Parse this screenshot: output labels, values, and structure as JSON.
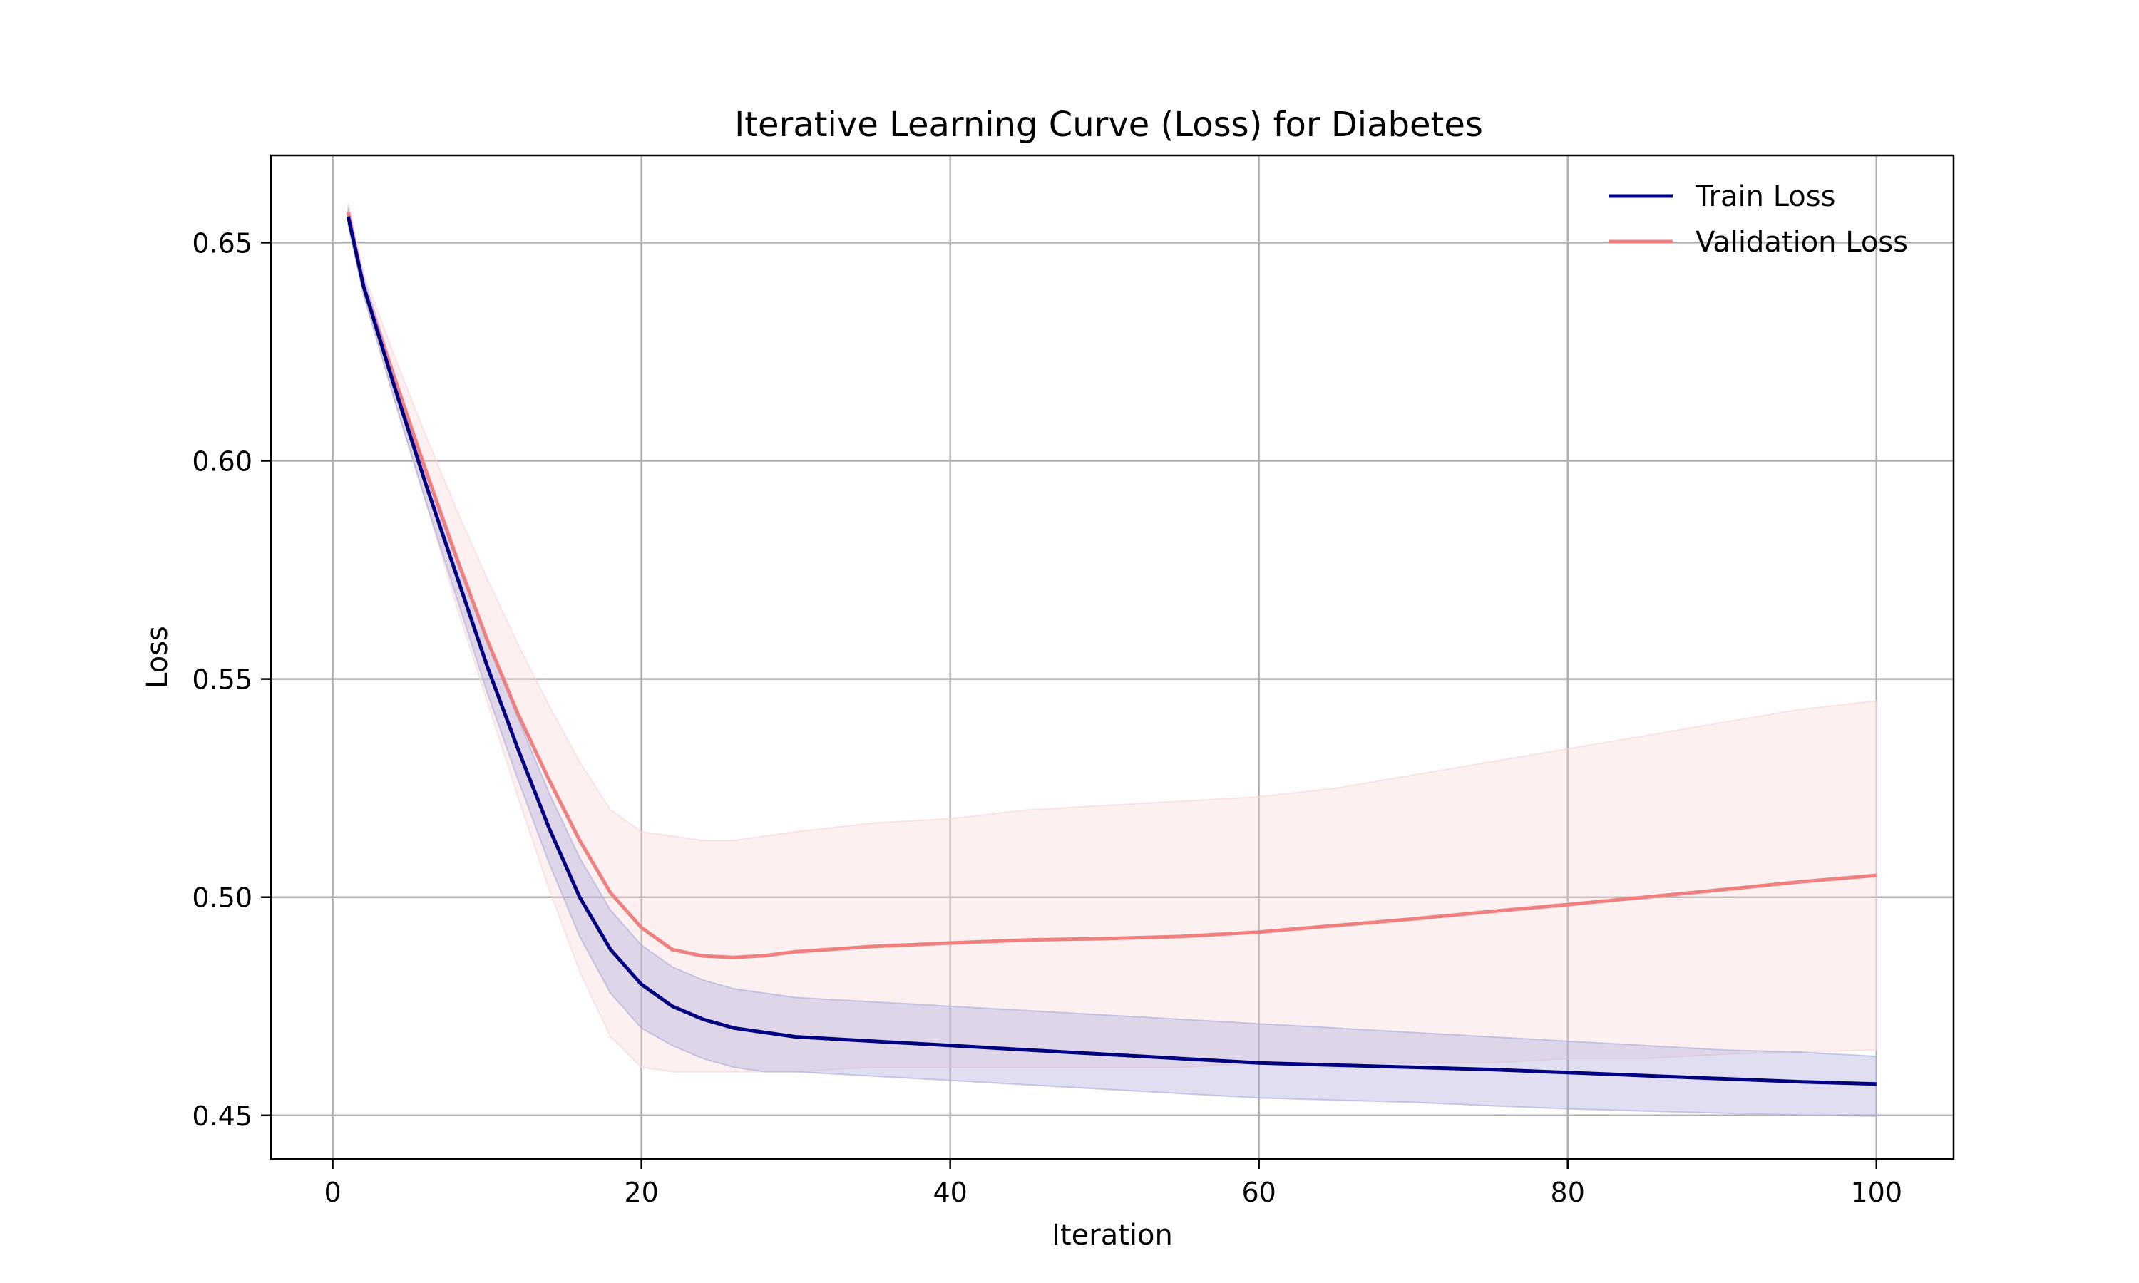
{
  "chart_data": {
    "type": "line",
    "title": "Iterative Learning Curve (Loss) for Diabetes",
    "xlabel": "Iteration",
    "ylabel": "Loss",
    "xlim": [
      -4,
      105
    ],
    "ylim": [
      0.44,
      0.67
    ],
    "grid": true,
    "legend_position": "top-right",
    "x_ticks": [
      0,
      20,
      40,
      60,
      80,
      100
    ],
    "x_tick_labels": [
      "0",
      "20",
      "40",
      "60",
      "80",
      "100"
    ],
    "y_ticks": [
      0.45,
      0.5,
      0.55,
      0.6,
      0.65
    ],
    "y_tick_labels": [
      "0.45",
      "0.50",
      "0.55",
      "0.60",
      "0.65"
    ],
    "x": [
      1,
      2,
      4,
      6,
      8,
      10,
      12,
      14,
      16,
      18,
      20,
      22,
      24,
      26,
      28,
      30,
      35,
      40,
      45,
      50,
      55,
      60,
      65,
      70,
      75,
      80,
      85,
      90,
      95,
      100
    ],
    "series": [
      {
        "name": "Train Loss",
        "color": "#000080",
        "band_color": "#aaaadb",
        "values": [
          0.656,
          0.64,
          0.617,
          0.595,
          0.574,
          0.553,
          0.534,
          0.516,
          0.5,
          0.488,
          0.48,
          0.475,
          0.472,
          0.47,
          0.469,
          0.468,
          0.467,
          0.466,
          0.465,
          0.464,
          0.463,
          0.462,
          0.4615,
          0.461,
          0.4605,
          0.4598,
          0.4591,
          0.4584,
          0.4577,
          0.4572
        ],
        "lower": [
          0.654,
          0.638,
          0.614,
          0.591,
          0.569,
          0.547,
          0.527,
          0.508,
          0.491,
          0.478,
          0.47,
          0.466,
          0.463,
          0.461,
          0.46,
          0.46,
          0.459,
          0.458,
          0.457,
          0.456,
          0.455,
          0.454,
          0.4535,
          0.453,
          0.4522,
          0.4515,
          0.451,
          0.4505,
          0.4501,
          0.4498
        ],
        "upper": [
          0.658,
          0.642,
          0.62,
          0.599,
          0.579,
          0.559,
          0.541,
          0.524,
          0.509,
          0.497,
          0.489,
          0.484,
          0.481,
          0.479,
          0.478,
          0.477,
          0.476,
          0.475,
          0.474,
          0.473,
          0.472,
          0.471,
          0.47,
          0.469,
          0.468,
          0.467,
          0.466,
          0.465,
          0.4645,
          0.4635
        ]
      },
      {
        "name": "Validation Loss",
        "color": "#f08080",
        "band_color": "#f9d5d5",
        "values": [
          0.657,
          0.64,
          0.619,
          0.598,
          0.578,
          0.559,
          0.542,
          0.527,
          0.513,
          0.501,
          0.493,
          0.488,
          0.4865,
          0.4862,
          0.4866,
          0.4875,
          0.4887,
          0.4895,
          0.4902,
          0.4905,
          0.491,
          0.492,
          0.4935,
          0.495,
          0.4967,
          0.4983,
          0.5,
          0.5017,
          0.5035,
          0.505
        ],
        "lower": [
          0.655,
          0.638,
          0.614,
          0.591,
          0.567,
          0.545,
          0.523,
          0.502,
          0.483,
          0.468,
          0.461,
          0.46,
          0.46,
          0.46,
          0.46,
          0.46,
          0.461,
          0.461,
          0.461,
          0.461,
          0.461,
          0.462,
          0.462,
          0.462,
          0.462,
          0.463,
          0.463,
          0.464,
          0.4645,
          0.465
        ],
        "upper": [
          0.659,
          0.643,
          0.624,
          0.606,
          0.589,
          0.573,
          0.558,
          0.544,
          0.531,
          0.52,
          0.515,
          0.514,
          0.513,
          0.513,
          0.514,
          0.515,
          0.517,
          0.518,
          0.52,
          0.521,
          0.522,
          0.523,
          0.525,
          0.528,
          0.531,
          0.534,
          0.537,
          0.54,
          0.543,
          0.545
        ]
      }
    ]
  }
}
